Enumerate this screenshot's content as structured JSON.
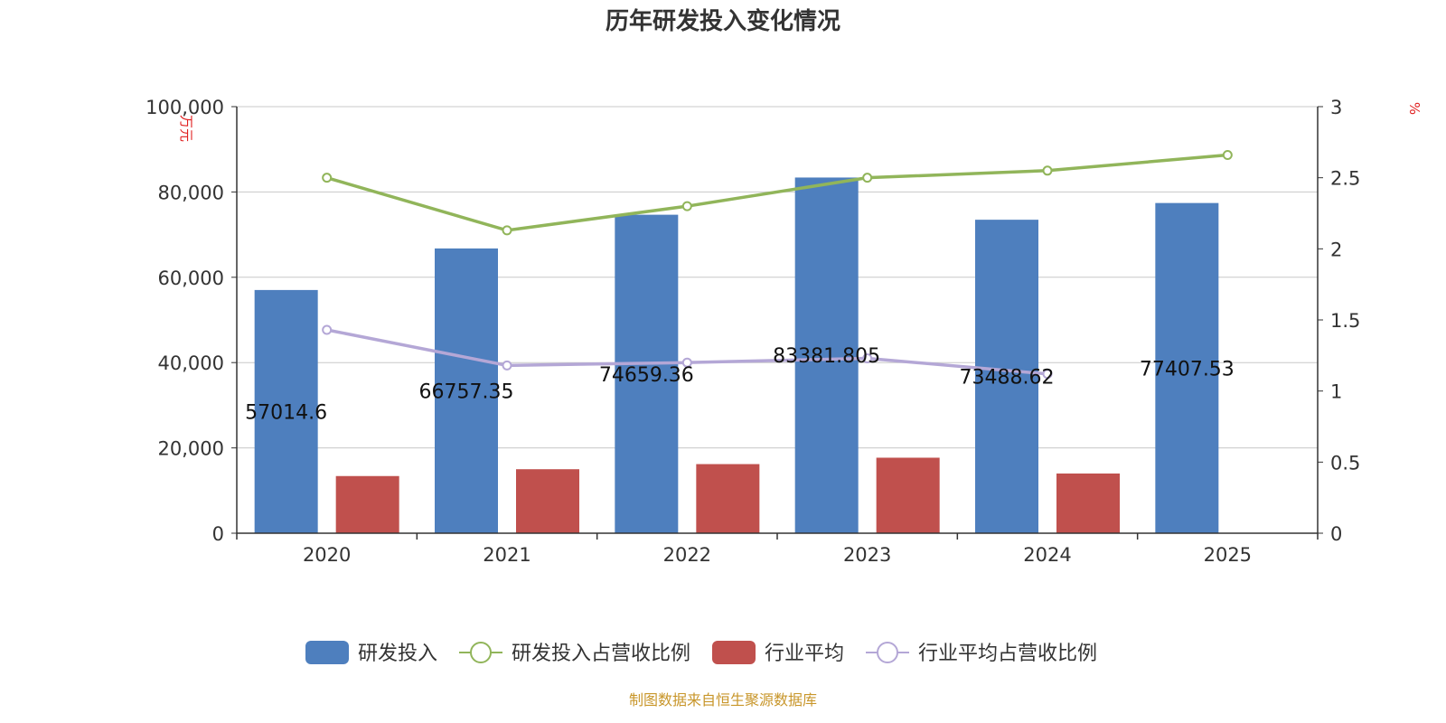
{
  "chart_data": {
    "type": "bar",
    "title": "历年研发投入变化情况",
    "categories": [
      "2020",
      "2021",
      "2022",
      "2023",
      "2024",
      "2025"
    ],
    "y_left": {
      "unit": "万元",
      "ylim": [
        0,
        100000
      ],
      "ticks": [
        0,
        20000,
        40000,
        60000,
        80000,
        100000
      ],
      "tick_labels": [
        "0",
        "20,000",
        "40,000",
        "60,000",
        "80,000",
        "100,000"
      ]
    },
    "y_right": {
      "unit": "%",
      "ylim": [
        0,
        3
      ],
      "ticks": [
        0,
        0.5,
        1,
        1.5,
        2,
        2.5,
        3
      ],
      "tick_labels": [
        "0",
        "0.5",
        "1",
        "1.5",
        "2",
        "2.5",
        "3"
      ]
    },
    "series": [
      {
        "name": "研发投入",
        "kind": "bar",
        "axis": "left",
        "color": "#4e7fbe",
        "values": [
          57014.6,
          66757.35,
          74659.36,
          83381.805,
          73488.62,
          77407.53
        ],
        "labels": [
          "57014.6",
          "66757.35",
          "74659.36",
          "83381.805",
          "73488.62",
          "77407.53"
        ]
      },
      {
        "name": "研发投入占营收比例",
        "kind": "line",
        "axis": "right",
        "color": "#91b55a",
        "values": [
          2.5,
          2.13,
          2.3,
          2.5,
          2.55,
          2.66
        ]
      },
      {
        "name": "行业平均",
        "kind": "bar",
        "axis": "left",
        "color": "#c0504d",
        "values": [
          13400,
          15000,
          16200,
          17700,
          14000,
          null
        ]
      },
      {
        "name": "行业平均占营收比例",
        "kind": "line",
        "axis": "right",
        "color": "#b4a7d6",
        "values": [
          1.43,
          1.18,
          1.2,
          1.23,
          1.12,
          null
        ]
      }
    ],
    "grid": true,
    "legend": "bottom"
  },
  "source_note": "制图数据来自恒生聚源数据库"
}
